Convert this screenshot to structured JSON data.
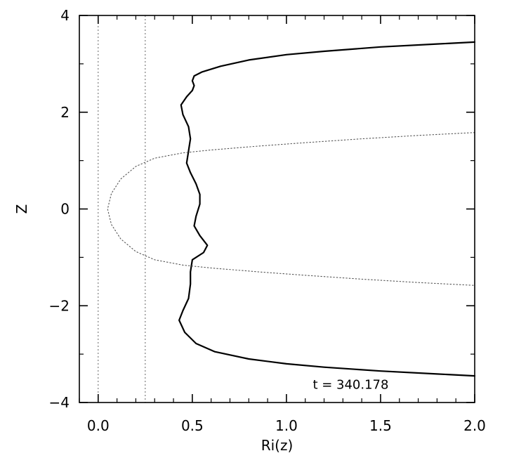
{
  "chart_data": {
    "type": "line",
    "title": "",
    "xlabel": "Ri(z)",
    "ylabel": "Z",
    "xlim": [
      -0.1,
      2.0
    ],
    "ylim": [
      -4,
      4
    ],
    "grid": false,
    "x_ticks": [
      0.0,
      0.5,
      1.0,
      1.5,
      2.0
    ],
    "x_tick_labels": [
      "0.0",
      "0.5",
      "1.0",
      "1.5",
      "2.0"
    ],
    "y_ticks": [
      -4,
      -2,
      0,
      2,
      4
    ],
    "y_tick_labels": [
      "−4",
      "−2",
      "0",
      "2",
      "4"
    ],
    "annotation": "t  =  340.178",
    "reference_lines": [
      {
        "orientation": "vertical",
        "x": 0.0,
        "style": "dotted"
      },
      {
        "orientation": "vertical",
        "x": 0.25,
        "style": "dotted"
      }
    ],
    "series": [
      {
        "style": "solid",
        "points": [
          [
            2.0,
            3.45
          ],
          [
            1.8,
            3.41
          ],
          [
            1.5,
            3.35
          ],
          [
            1.2,
            3.26
          ],
          [
            1.0,
            3.19
          ],
          [
            0.8,
            3.08
          ],
          [
            0.65,
            2.95
          ],
          [
            0.55,
            2.83
          ],
          [
            0.51,
            2.75
          ],
          [
            0.5,
            2.65
          ],
          [
            0.51,
            2.55
          ],
          [
            0.5,
            2.45
          ],
          [
            0.47,
            2.32
          ],
          [
            0.44,
            2.15
          ],
          [
            0.45,
            1.95
          ],
          [
            0.48,
            1.7
          ],
          [
            0.49,
            1.45
          ],
          [
            0.48,
            1.2
          ],
          [
            0.47,
            0.95
          ],
          [
            0.49,
            0.75
          ],
          [
            0.52,
            0.52
          ],
          [
            0.54,
            0.3
          ],
          [
            0.54,
            0.1
          ],
          [
            0.52,
            -0.15
          ],
          [
            0.51,
            -0.35
          ],
          [
            0.54,
            -0.55
          ],
          [
            0.58,
            -0.75
          ],
          [
            0.56,
            -0.9
          ],
          [
            0.5,
            -1.05
          ],
          [
            0.49,
            -1.3
          ],
          [
            0.49,
            -1.55
          ],
          [
            0.48,
            -1.85
          ],
          [
            0.45,
            -2.1
          ],
          [
            0.43,
            -2.3
          ],
          [
            0.46,
            -2.55
          ],
          [
            0.52,
            -2.78
          ],
          [
            0.62,
            -2.95
          ],
          [
            0.8,
            -3.1
          ],
          [
            1.0,
            -3.2
          ],
          [
            1.2,
            -3.27
          ],
          [
            1.5,
            -3.35
          ],
          [
            1.8,
            -3.41
          ],
          [
            2.0,
            -3.45
          ]
        ]
      },
      {
        "style": "dotted",
        "points": [
          [
            2.0,
            1.58
          ],
          [
            1.7,
            1.52
          ],
          [
            1.4,
            1.45
          ],
          [
            1.1,
            1.37
          ],
          [
            0.85,
            1.3
          ],
          [
            0.6,
            1.22
          ],
          [
            0.45,
            1.16
          ],
          [
            0.3,
            1.05
          ],
          [
            0.2,
            0.88
          ],
          [
            0.12,
            0.62
          ],
          [
            0.07,
            0.32
          ],
          [
            0.05,
            0.0
          ],
          [
            0.07,
            -0.32
          ],
          [
            0.12,
            -0.62
          ],
          [
            0.2,
            -0.88
          ],
          [
            0.3,
            -1.05
          ],
          [
            0.45,
            -1.16
          ],
          [
            0.6,
            -1.22
          ],
          [
            0.85,
            -1.3
          ],
          [
            1.1,
            -1.37
          ],
          [
            1.4,
            -1.45
          ],
          [
            1.7,
            -1.52
          ],
          [
            2.0,
            -1.58
          ]
        ]
      }
    ]
  }
}
